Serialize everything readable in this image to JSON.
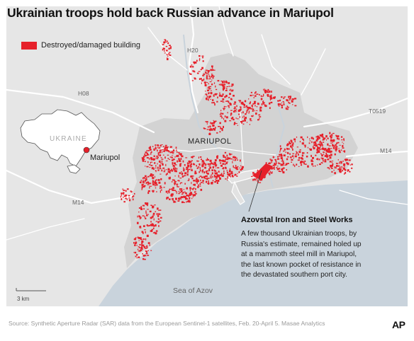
{
  "title": "Ukrainian troops hold back Russian advance in Mariupol",
  "legend": {
    "label": "Destroyed/damaged building",
    "color": "#e6202a"
  },
  "colors": {
    "land": "#e6e6e6",
    "sea": "#c9d3dc",
    "urban": "#d2d2d2",
    "road": "#ffffff",
    "damage": "#e6202a",
    "inset_country": "#ffffff"
  },
  "map_labels": {
    "roads": [
      "H20",
      "H08",
      "T0519",
      "M14",
      "M14"
    ],
    "city": "MARIUPOL",
    "sea": "Sea of Azov"
  },
  "inset": {
    "country": "UKRAINE",
    "city": "Mariupol"
  },
  "callout": {
    "title": "Azovstal Iron and Steel Works",
    "text": "A few thousand Ukrainian troops, by Russia's estimate, remained holed up at a mammoth steel mill in Mariupol, the last known pocket of resistance in the devastated southern port city."
  },
  "scale": {
    "label": "3 km"
  },
  "source": "Source: Synthetic Aperture Radar (SAR) data from the European Sentinel-1 satellites, Feb. 20-April 5. Masae Analytics",
  "logo": "AP"
}
